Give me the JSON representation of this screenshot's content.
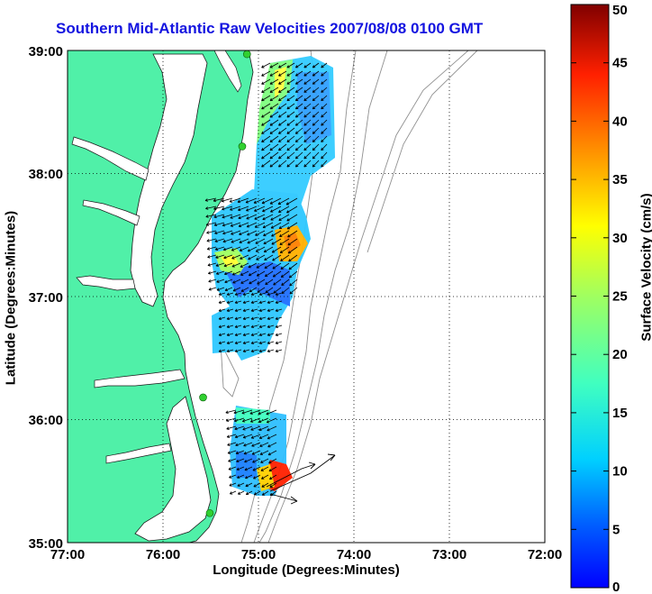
{
  "title": "Southern Mid-Atlantic Raw Velocities 2007/08/08 0100 GMT",
  "xlabel": "Longitude (Degrees:Minutes)",
  "ylabel": "Latitude (Degrees:Minutes)",
  "colorbar": {
    "label": "Surface Velocity (cm/s)",
    "ticks": [
      "0",
      "5",
      "10",
      "15",
      "20",
      "25",
      "30",
      "35",
      "40",
      "45",
      "50"
    ],
    "range": [
      0,
      50
    ],
    "colormap": "jet"
  },
  "map": {
    "x_ticks": [
      "77:00",
      "76:00",
      "75:00",
      "74:00",
      "73:00",
      "72:00"
    ],
    "y_ticks": [
      "39:00",
      "38:00",
      "37:00",
      "36:00",
      "35:00"
    ],
    "lon_range": [
      -77,
      -72
    ],
    "lat_range": [
      35,
      39
    ],
    "grid": "dotted",
    "colors": {
      "land": "#50f0a8",
      "water": "#ffffff",
      "bathymetry": "#909090",
      "stations": "#30d030",
      "arrows": "#000000"
    },
    "stations": [
      {
        "lon": -75.12,
        "lat": 38.97
      },
      {
        "lon": -75.17,
        "lat": 38.22
      },
      {
        "lon": -75.58,
        "lat": 36.18
      },
      {
        "lon": -75.51,
        "lat": 35.24
      }
    ]
  }
}
